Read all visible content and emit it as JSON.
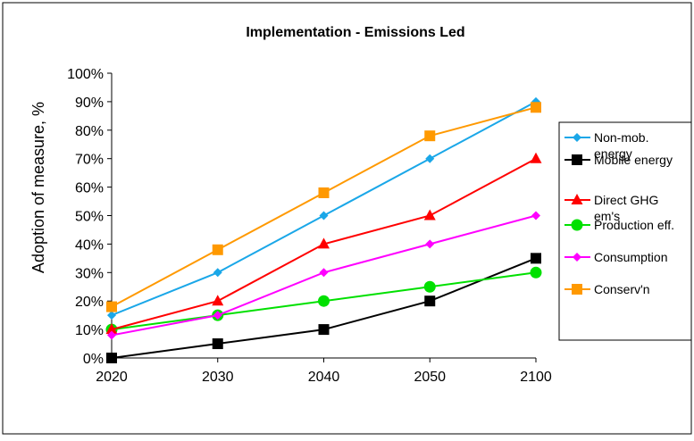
{
  "chart_data": {
    "type": "line",
    "title": "Implementation - Emissions Led",
    "xlabel": "",
    "ylabel": "Adoption of measure, %",
    "categories": [
      "2020",
      "2030",
      "2040",
      "2050",
      "2100"
    ],
    "ylim": [
      0,
      100
    ],
    "yticks": [
      "0%",
      "10%",
      "20%",
      "30%",
      "40%",
      "50%",
      "60%",
      "70%",
      "80%",
      "90%",
      "100%"
    ],
    "grid": false,
    "legend_position": "right",
    "series": [
      {
        "name": "Non-mob. energy",
        "legend_lines": [
          "Non-mob.",
          "energy"
        ],
        "color": "#1aa7e8",
        "marker": "diamond",
        "values": [
          15,
          30,
          50,
          70,
          90
        ]
      },
      {
        "name": "Mobile energy",
        "legend_lines": [
          "Mobile energy"
        ],
        "color": "#000000",
        "marker": "square",
        "values": [
          0,
          5,
          10,
          20,
          35
        ]
      },
      {
        "name": "Direct GHG em's",
        "legend_lines": [
          "Direct GHG",
          "em's"
        ],
        "color": "#ff0000",
        "marker": "triangle",
        "values": [
          10,
          20,
          40,
          50,
          70
        ]
      },
      {
        "name": "Production eff.",
        "legend_lines": [
          "Production eff."
        ],
        "color": "#00e000",
        "marker": "circle",
        "values": [
          10,
          15,
          20,
          25,
          30
        ]
      },
      {
        "name": "Consumption",
        "legend_lines": [
          "Consumption"
        ],
        "color": "#ff00ff",
        "marker": "diamond",
        "values": [
          8,
          15,
          30,
          40,
          50
        ]
      },
      {
        "name": "Conserv'n",
        "legend_lines": [
          "Conserv'n"
        ],
        "color": "#ff9900",
        "marker": "square",
        "values": [
          18,
          38,
          58,
          78,
          88
        ]
      }
    ]
  }
}
